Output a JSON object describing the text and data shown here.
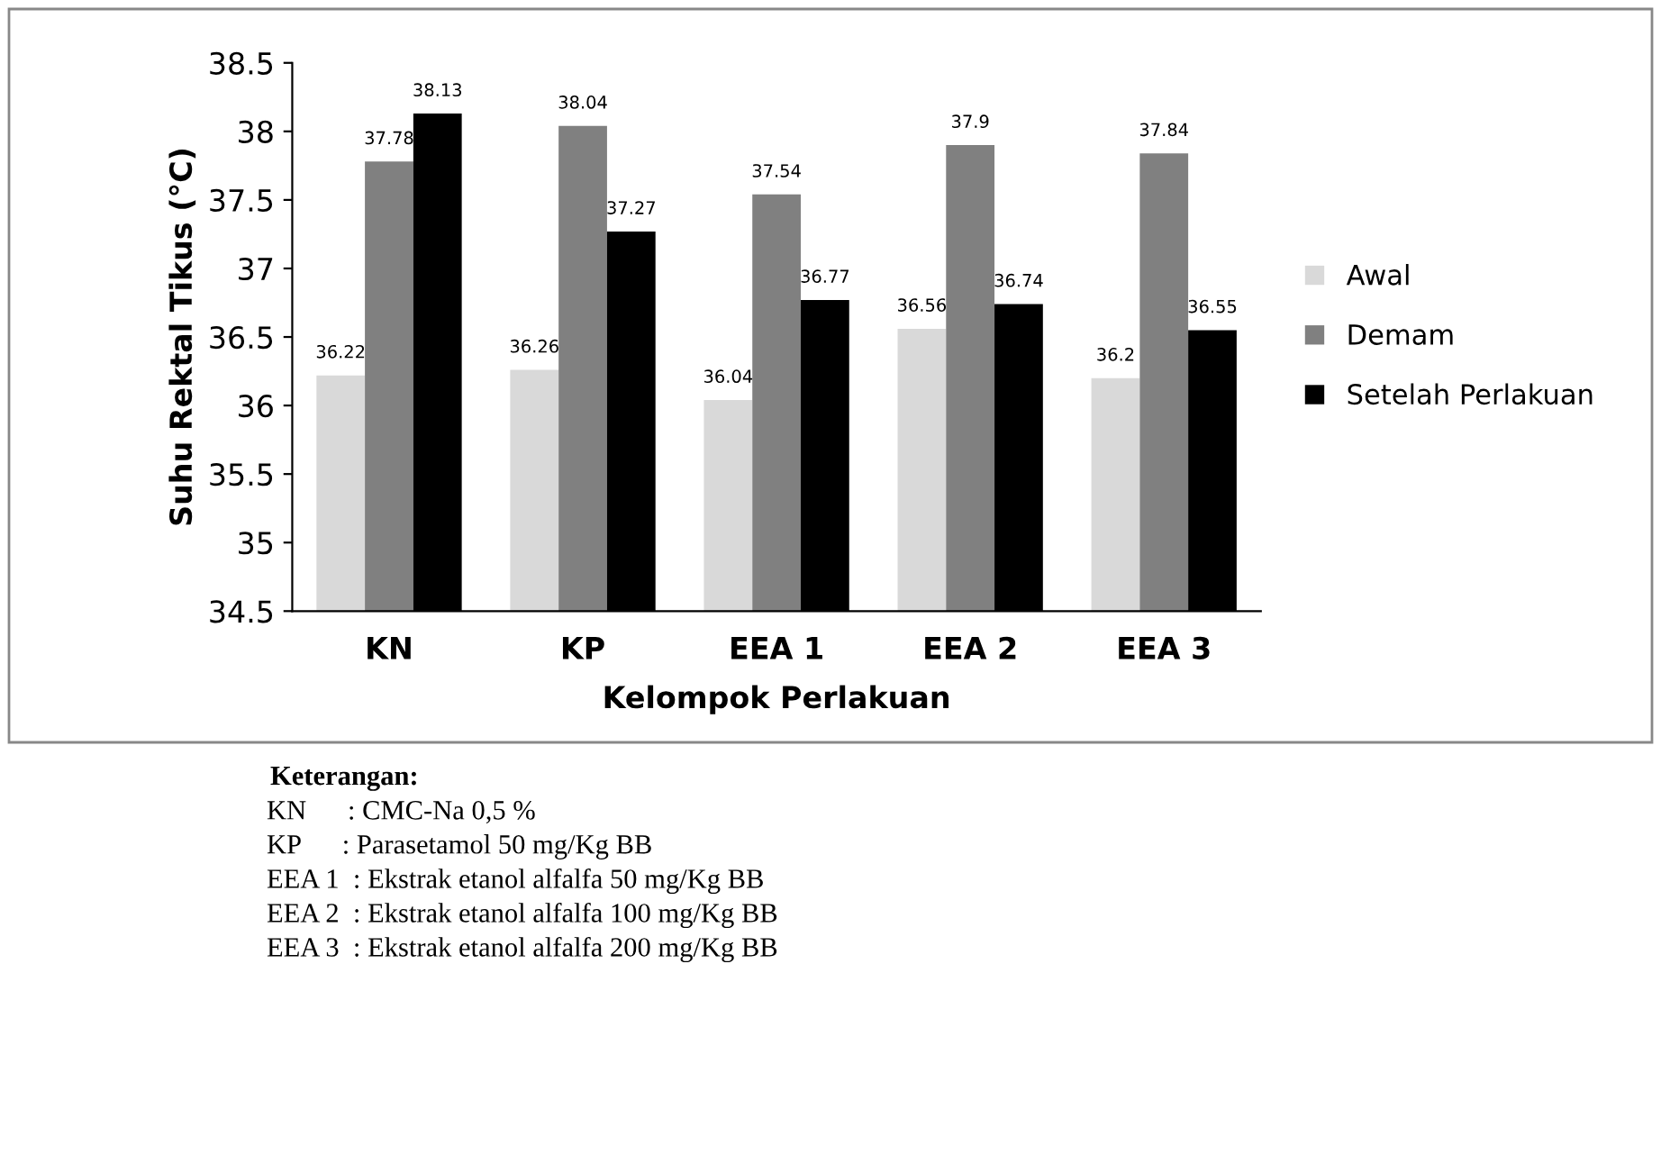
{
  "chart_data": {
    "type": "bar",
    "xlabel": "Kelompok Perlakuan",
    "ylabel": "Suhu Rektal Tikus (°C)",
    "categories": [
      "KN",
      "KP",
      "EEA 1",
      "EEA 2",
      "EEA 3"
    ],
    "series": [
      {
        "name": "Awal",
        "color": "#d9d9d9",
        "values": [
          36.22,
          36.26,
          36.04,
          36.56,
          36.2
        ]
      },
      {
        "name": "Demam",
        "color": "#808080",
        "values": [
          37.78,
          38.04,
          37.54,
          37.9,
          37.84
        ]
      },
      {
        "name": "Setelah Perlakuan",
        "color": "#000000",
        "values": [
          38.13,
          37.27,
          36.77,
          36.74,
          36.55
        ]
      }
    ],
    "ylim": [
      34.5,
      38.5
    ],
    "yticks": [
      34.5,
      35,
      35.5,
      36,
      36.5,
      37,
      37.5,
      38,
      38.5
    ],
    "data_labels": true,
    "grid": false,
    "legend": "right",
    "annotations": [
      "Keterangan:",
      "KN      : CMC-Na 0,5 %",
      "KP      : Parasetamol 50 mg/Kg BB",
      "EEA 1  : Ekstrak etanol alfalfa 50 mg/Kg BB",
      "EEA 2  : Ekstrak etanol alfalfa 100 mg/Kg BB",
      "EEA 3  : Ekstrak etanol alfalfa 200 mg/Kg BB"
    ]
  }
}
